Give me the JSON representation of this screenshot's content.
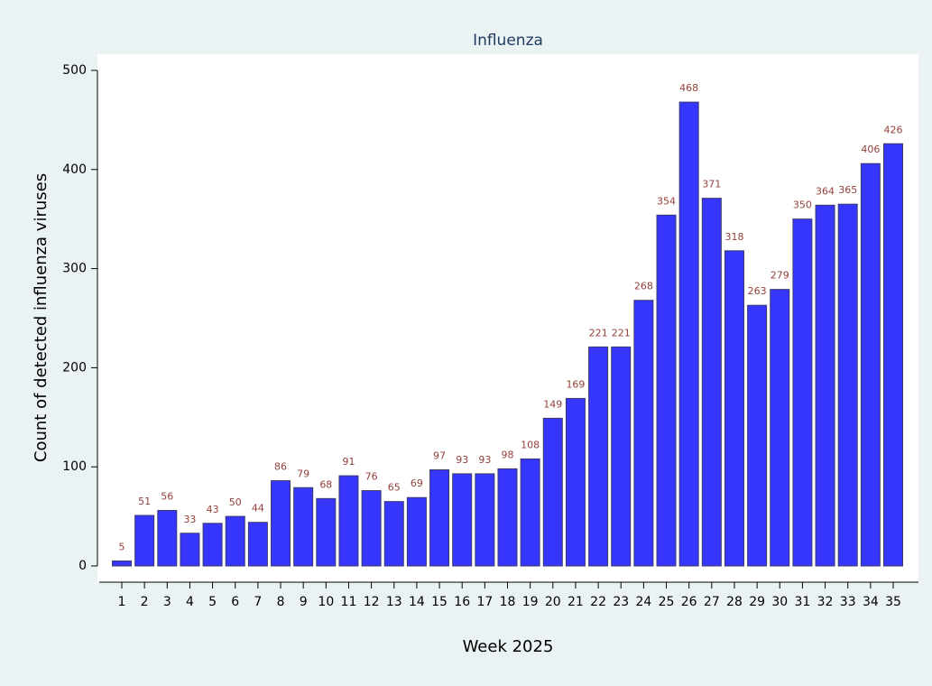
{
  "chart_data": {
    "type": "bar",
    "title": "Influenza",
    "x_label": "Week 2025",
    "y_label": "Count of detected influenza viruses",
    "categories": [
      "1",
      "2",
      "3",
      "4",
      "5",
      "6",
      "7",
      "8",
      "9",
      "10",
      "11",
      "12",
      "13",
      "14",
      "15",
      "16",
      "17",
      "18",
      "19",
      "20",
      "21",
      "22",
      "23",
      "24",
      "25",
      "26",
      "27",
      "28",
      "29",
      "30",
      "31",
      "32",
      "33",
      "34",
      "35"
    ],
    "values": [
      5,
      51,
      56,
      33,
      43,
      50,
      44,
      86,
      79,
      68,
      91,
      76,
      65,
      69,
      97,
      93,
      93,
      98,
      108,
      149,
      169,
      221,
      221,
      268,
      354,
      468,
      371,
      318,
      263,
      279,
      350,
      364,
      365,
      406,
      426
    ],
    "color": "#3636ff",
    "label_color": "#93403a",
    "ylim": [
      0,
      500
    ],
    "yticks": [
      0,
      100,
      200,
      300,
      400,
      500
    ],
    "grid": false
  }
}
